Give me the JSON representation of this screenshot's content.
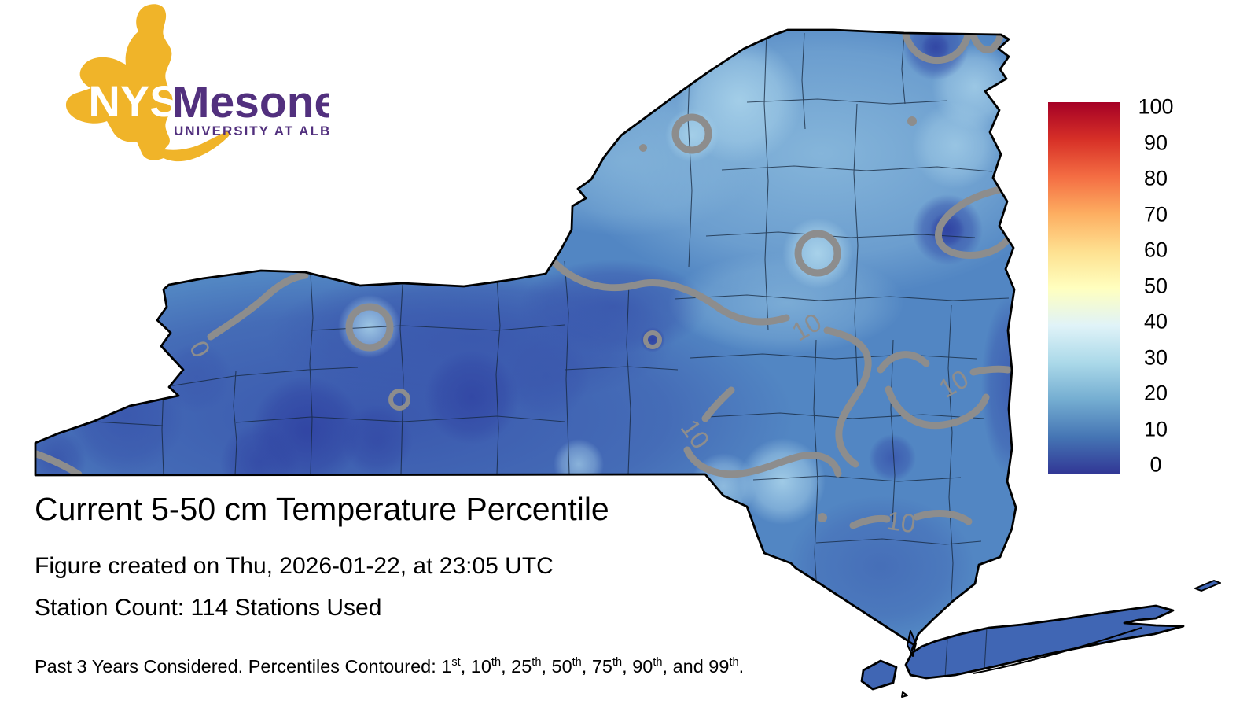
{
  "logo": {
    "nys": "NYS",
    "mesonet": "Mesonet",
    "university": "UNIVERSITY AT ALBANY",
    "gold_color": "#F0B429",
    "purple_color": "#52307E"
  },
  "caption": {
    "title": "Current 5-50 cm Temperature Percentile",
    "created": "Figure created on Thu, 2026-01-22, at 23:05 UTC",
    "stations": "Station Count: 114 Stations Used"
  },
  "footnote": {
    "parts": [
      {
        "t": "Past 3 Years Considered. Percentiles Contoured: 1"
      },
      {
        "sup": "st"
      },
      {
        "t": ", 10"
      },
      {
        "sup": "th"
      },
      {
        "t": ", 25"
      },
      {
        "sup": "th"
      },
      {
        "t": ", 50"
      },
      {
        "sup": "th"
      },
      {
        "t": ", 75"
      },
      {
        "sup": "th"
      },
      {
        "t": ", 90"
      },
      {
        "sup": "th"
      },
      {
        "t": ", and 99"
      },
      {
        "sup": "th"
      },
      {
        "t": "."
      }
    ]
  },
  "colorbar": {
    "ticks": [
      "100",
      "90",
      "80",
      "70",
      "60",
      "50",
      "40",
      "30",
      "20",
      "10",
      "0"
    ],
    "range": [
      0,
      100
    ],
    "colors_bottom_to_top": [
      "#313695",
      "#4575b4",
      "#74add1",
      "#abd9e9",
      "#e0f3f8",
      "#ffffbf",
      "#fee090",
      "#fdae61",
      "#f46d43",
      "#d73027",
      "#a50026"
    ]
  },
  "contours": {
    "line_color": "#8d8d8d",
    "labels": [
      {
        "text": "0"
      },
      {
        "text": "10"
      },
      {
        "text": "10"
      },
      {
        "text": "10"
      },
      {
        "text": "10"
      }
    ]
  },
  "map_colors": {
    "base": "#5286c3",
    "light_spot": "#a8d2ea",
    "light": "#85b5da",
    "dark": "#3a57ad",
    "very_dark": "#3043a2",
    "island": "#4066b4"
  }
}
